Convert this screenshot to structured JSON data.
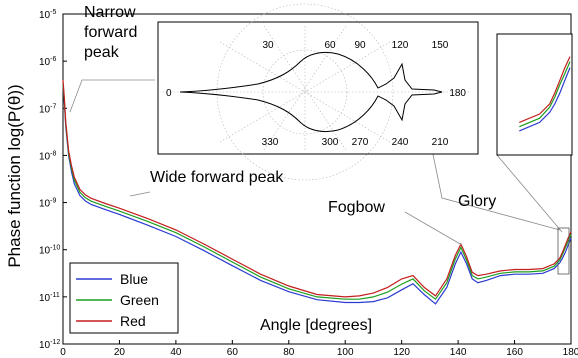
{
  "chart_data": {
    "type": "line",
    "xlabel": "Angle [degrees]",
    "ylabel": "Phase function log(P(θ))",
    "log_y": true,
    "xlim": [
      0,
      180
    ],
    "ylim_log10": [
      -12,
      -5
    ],
    "x_ticks": [
      0,
      20,
      40,
      60,
      80,
      100,
      120,
      140,
      160,
      180
    ],
    "y_ticks": [
      {
        "base": "10",
        "exp": "-5"
      },
      {
        "base": "10",
        "exp": "-6"
      },
      {
        "base": "10",
        "exp": "-7"
      },
      {
        "base": "10",
        "exp": "-8"
      },
      {
        "base": "10",
        "exp": "-9"
      },
      {
        "base": "10",
        "exp": "-10"
      },
      {
        "base": "10",
        "exp": "-11"
      },
      {
        "base": "10",
        "exp": "-12"
      }
    ],
    "legend": {
      "position": "bottom-left",
      "entries": [
        {
          "name": "Blue",
          "color": "#2b3bd1"
        },
        {
          "name": "Green",
          "color": "#1e9e1e"
        },
        {
          "name": "Red",
          "color": "#c41e1e"
        }
      ]
    },
    "series": [
      {
        "name": "Blue",
        "color": "#2b3bd1",
        "x": [
          0,
          0.5,
          1,
          2,
          3,
          4,
          6,
          8,
          10,
          15,
          20,
          30,
          40,
          50,
          60,
          70,
          80,
          90,
          100,
          105,
          110,
          115,
          120,
          124,
          128,
          132,
          136,
          139,
          141,
          143,
          145,
          147,
          150,
          155,
          160,
          165,
          170,
          174,
          176,
          177,
          178,
          179,
          180
        ],
        "log10": [
          -6.5,
          -6.9,
          -7.4,
          -8.0,
          -8.35,
          -8.6,
          -8.85,
          -8.97,
          -9.04,
          -9.15,
          -9.25,
          -9.48,
          -9.72,
          -10.02,
          -10.34,
          -10.65,
          -10.89,
          -11.06,
          -11.12,
          -11.12,
          -11.1,
          -11.02,
          -10.85,
          -10.72,
          -10.95,
          -11.15,
          -10.8,
          -10.3,
          -10.05,
          -10.3,
          -10.62,
          -10.7,
          -10.65,
          -10.55,
          -10.52,
          -10.52,
          -10.5,
          -10.4,
          -10.28,
          -10.18,
          -10.05,
          -9.9,
          -9.75
        ]
      },
      {
        "name": "Green",
        "color": "#1e9e1e",
        "x": [
          0,
          0.5,
          1,
          2,
          3,
          4,
          6,
          8,
          10,
          15,
          20,
          30,
          40,
          50,
          60,
          70,
          80,
          90,
          100,
          105,
          110,
          115,
          120,
          124,
          128,
          132,
          136,
          139,
          141,
          143,
          145,
          147,
          150,
          155,
          160,
          165,
          170,
          174,
          176,
          177,
          178,
          179,
          180
        ],
        "log10": [
          -6.45,
          -6.85,
          -7.35,
          -7.95,
          -8.28,
          -8.52,
          -8.78,
          -8.9,
          -8.97,
          -9.08,
          -9.18,
          -9.4,
          -9.64,
          -9.94,
          -10.26,
          -10.58,
          -10.83,
          -11.0,
          -11.05,
          -11.05,
          -11.0,
          -10.9,
          -10.73,
          -10.62,
          -10.87,
          -11.05,
          -10.7,
          -10.2,
          -9.95,
          -10.22,
          -10.55,
          -10.62,
          -10.58,
          -10.5,
          -10.47,
          -10.47,
          -10.45,
          -10.35,
          -10.22,
          -10.1,
          -9.95,
          -9.82,
          -9.68
        ]
      },
      {
        "name": "Red",
        "color": "#c41e1e",
        "x": [
          0,
          0.5,
          1,
          2,
          3,
          4,
          6,
          8,
          10,
          15,
          20,
          30,
          40,
          50,
          60,
          70,
          80,
          90,
          100,
          105,
          110,
          115,
          120,
          124,
          128,
          132,
          136,
          139,
          141,
          143,
          145,
          147,
          150,
          155,
          160,
          165,
          170,
          174,
          176,
          177,
          178,
          179,
          180
        ],
        "log10": [
          -6.4,
          -6.8,
          -7.3,
          -7.9,
          -8.22,
          -8.46,
          -8.72,
          -8.84,
          -8.91,
          -9.02,
          -9.12,
          -9.34,
          -9.58,
          -9.88,
          -10.2,
          -10.52,
          -10.77,
          -10.95,
          -11.0,
          -10.98,
          -10.92,
          -10.8,
          -10.62,
          -10.55,
          -10.8,
          -10.98,
          -10.62,
          -10.12,
          -9.88,
          -10.15,
          -10.48,
          -10.55,
          -10.52,
          -10.45,
          -10.42,
          -10.42,
          -10.4,
          -10.3,
          -10.18,
          -10.05,
          -9.9,
          -9.75,
          -9.62
        ]
      }
    ],
    "annotations": {
      "narrow_peak": [
        "Narrow",
        "forward",
        "peak"
      ],
      "wide_peak": "Wide forward peak",
      "fogbow": "Fogbow",
      "glory": "Glory"
    },
    "polar_inset": {
      "angle_labels": [
        "0",
        "30",
        "60",
        "90",
        "120",
        "150",
        "180",
        "210",
        "240",
        "270",
        "300",
        "330"
      ]
    }
  }
}
